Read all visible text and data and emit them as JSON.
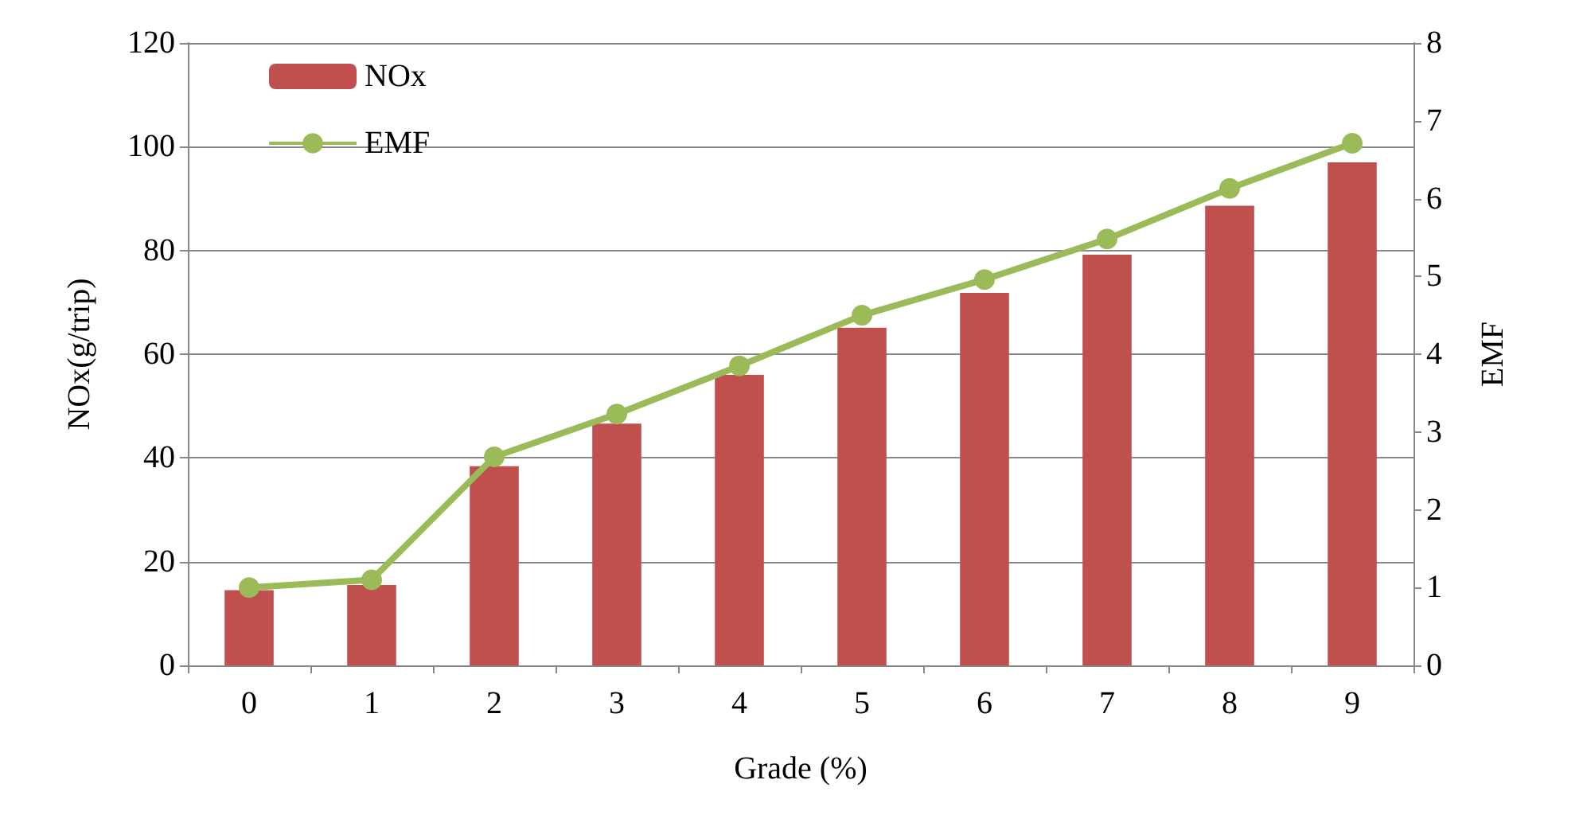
{
  "chart_data": {
    "type": "bar",
    "xlabel": "Grade (%)",
    "ylabel": "NOx(g/trip)",
    "y2label": "EMF",
    "categories": [
      "0",
      "1",
      "2",
      "3",
      "4",
      "5",
      "6",
      "7",
      "8",
      "9"
    ],
    "series": [
      {
        "name": "NOx",
        "color": "#c0504d",
        "values": [
          14.5,
          15.5,
          38.4,
          46.6,
          56,
          65.1,
          71.8,
          79.2,
          88.6,
          97
        ]
      },
      {
        "name": "EMF",
        "type": "line",
        "axis": "y2",
        "color": "#9bbb59",
        "marker": "circle",
        "values": [
          1.0,
          1.1,
          2.68,
          3.23,
          3.85,
          4.5,
          4.96,
          5.48,
          6.13,
          6.71
        ]
      }
    ],
    "ylim": [
      0,
      120
    ],
    "yticks": [
      0,
      20,
      40,
      60,
      80,
      100,
      120
    ],
    "y2lim": [
      0,
      8
    ],
    "y2ticks": [
      0,
      1,
      2,
      3,
      4,
      5,
      6,
      7,
      8
    ],
    "grid": "y",
    "legend": "top left"
  }
}
